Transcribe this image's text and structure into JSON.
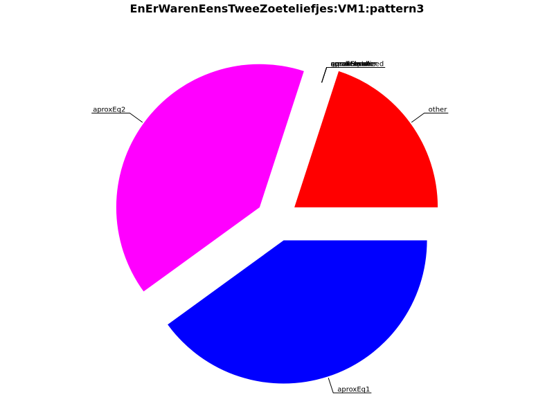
{
  "chart_data": {
    "type": "pie",
    "title": "EnErWarenEensTweeZoeteliefjes:VM1:pattern3",
    "slices": [
      {
        "label": "other",
        "value": 20,
        "color": "#ff0000",
        "explode": true
      },
      {
        "label": "aprox",
        "value": 0,
        "color": "#000000",
        "explode": false
      },
      {
        "label": "equal",
        "value": 0,
        "color": "#000000",
        "explode": false
      },
      {
        "label": "greater",
        "value": 0,
        "color": "#000000",
        "explode": false
      },
      {
        "label": "smaller",
        "value": 0,
        "color": "#000000",
        "explode": false
      },
      {
        "label": "aproxGreater",
        "value": 0,
        "color": "#000000",
        "explode": false
      },
      {
        "label": "aproxSmaller",
        "value": 0,
        "color": "#000000",
        "explode": false
      },
      {
        "label": "aproxSlower",
        "value": 0,
        "color": "#000000",
        "explode": false
      },
      {
        "label": "aproxFaster",
        "value": 0,
        "color": "#000000",
        "explode": false
      },
      {
        "label": "aproxEqualized",
        "value": 0,
        "color": "#000000",
        "explode": false
      },
      {
        "label": "aproxEq2",
        "value": 40,
        "color": "#ff00ff",
        "explode": true
      },
      {
        "label": "aproxEq1",
        "value": 40,
        "color": "#0000ff",
        "explode": true
      }
    ]
  }
}
